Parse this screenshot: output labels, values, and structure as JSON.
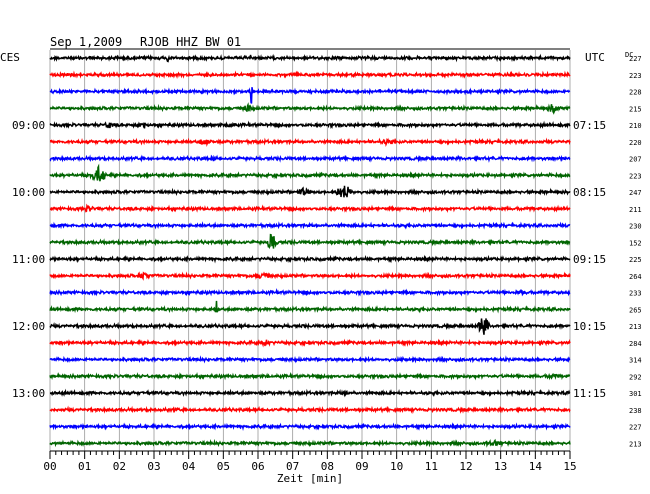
{
  "header": {
    "date": "Sep 1,2009",
    "station": "RJOB HHZ BW 01",
    "left_timezone": "CES",
    "right_timezone": "UTC",
    "dc_label": "DC"
  },
  "chart_data": {
    "type": "line",
    "title": "Sep 1,2009   RJOB HHZ BW 01",
    "xlabel": "Zeit [min]",
    "xlim": [
      0,
      15
    ],
    "x_ticks": [
      "00",
      "01",
      "02",
      "03",
      "04",
      "05",
      "06",
      "07",
      "08",
      "09",
      "10",
      "11",
      "12",
      "13",
      "14",
      "15"
    ],
    "grid": true,
    "left_time_labels": [
      {
        "row": 4,
        "label": "09:00"
      },
      {
        "row": 8,
        "label": "10:00"
      },
      {
        "row": 12,
        "label": "11:00"
      },
      {
        "row": 16,
        "label": "12:00"
      },
      {
        "row": 20,
        "label": "13:00"
      }
    ],
    "right_time_labels": [
      {
        "row": 4,
        "label": "07:15"
      },
      {
        "row": 8,
        "label": "08:15"
      },
      {
        "row": 12,
        "label": "09:15"
      },
      {
        "row": 16,
        "label": "10:15"
      },
      {
        "row": 20,
        "label": "11:15"
      }
    ],
    "dc_values": [
      "227",
      "223",
      "228",
      "215",
      "210",
      "220",
      "207",
      "223",
      "247",
      "211",
      "230",
      "152",
      "225",
      "264",
      "233",
      "265",
      "213",
      "284",
      "314",
      "292",
      "301",
      "238",
      "227",
      "213"
    ],
    "trace_colors": [
      "#000000",
      "#ff0000",
      "#0000ff",
      "#006400"
    ],
    "events": [
      {
        "row": 0,
        "x": 3.4,
        "amp": 1.1,
        "width": 0.04
      },
      {
        "row": 0,
        "x": 5.8,
        "amp": 0.5,
        "width": 0.05
      },
      {
        "row": 2,
        "x": 5.8,
        "amp": 2.2,
        "width": 0.04
      },
      {
        "row": 2,
        "x": 9.5,
        "amp": 0.5,
        "width": 0.05
      },
      {
        "row": 3,
        "x": 5.7,
        "amp": 0.5,
        "width": 0.2
      },
      {
        "row": 3,
        "x": 14.5,
        "amp": 0.5,
        "width": 0.25
      },
      {
        "row": 4,
        "x": 1.7,
        "amp": 0.5,
        "width": 0.2
      },
      {
        "row": 4,
        "x": 2.7,
        "amp": 0.5,
        "width": 0.2
      },
      {
        "row": 4,
        "x": 5.2,
        "amp": 0.4,
        "width": 0.25
      },
      {
        "row": 5,
        "x": 4.5,
        "amp": 0.45,
        "width": 0.35
      },
      {
        "row": 5,
        "x": 9.7,
        "amp": 0.35,
        "width": 0.4
      },
      {
        "row": 6,
        "x": 4.7,
        "amp": 0.35,
        "width": 0.15
      },
      {
        "row": 7,
        "x": 1.4,
        "amp": 1.1,
        "width": 0.3
      },
      {
        "row": 8,
        "x": 7.3,
        "amp": 0.5,
        "width": 0.3
      },
      {
        "row": 8,
        "x": 8.5,
        "amp": 0.9,
        "width": 0.35
      },
      {
        "row": 9,
        "x": 1.1,
        "amp": 0.4,
        "width": 0.3
      },
      {
        "row": 11,
        "x": 6.4,
        "amp": 1.2,
        "width": 0.2
      },
      {
        "row": 13,
        "x": 2.7,
        "amp": 0.45,
        "width": 0.3
      },
      {
        "row": 13,
        "x": 6.1,
        "amp": 0.4,
        "width": 0.4
      },
      {
        "row": 14,
        "x": 3.6,
        "amp": 0.6,
        "width": 0.05
      },
      {
        "row": 14,
        "x": 13.6,
        "amp": 0.35,
        "width": 0.3
      },
      {
        "row": 15,
        "x": 4.8,
        "amp": 1.1,
        "width": 0.05
      },
      {
        "row": 16,
        "x": 12.5,
        "amp": 1.5,
        "width": 0.2
      },
      {
        "row": 17,
        "x": 6.2,
        "amp": 0.4,
        "width": 0.3
      },
      {
        "row": 19,
        "x": 14.5,
        "amp": 0.3,
        "width": 0.3
      },
      {
        "row": 20,
        "x": 2.7,
        "amp": 0.5,
        "width": 0.05
      },
      {
        "row": 20,
        "x": 8.5,
        "amp": 0.3,
        "width": 0.25
      },
      {
        "row": 21,
        "x": 3.6,
        "amp": 0.5,
        "width": 0.05
      },
      {
        "row": 23,
        "x": 12.8,
        "amp": 0.35,
        "width": 0.4
      }
    ]
  }
}
